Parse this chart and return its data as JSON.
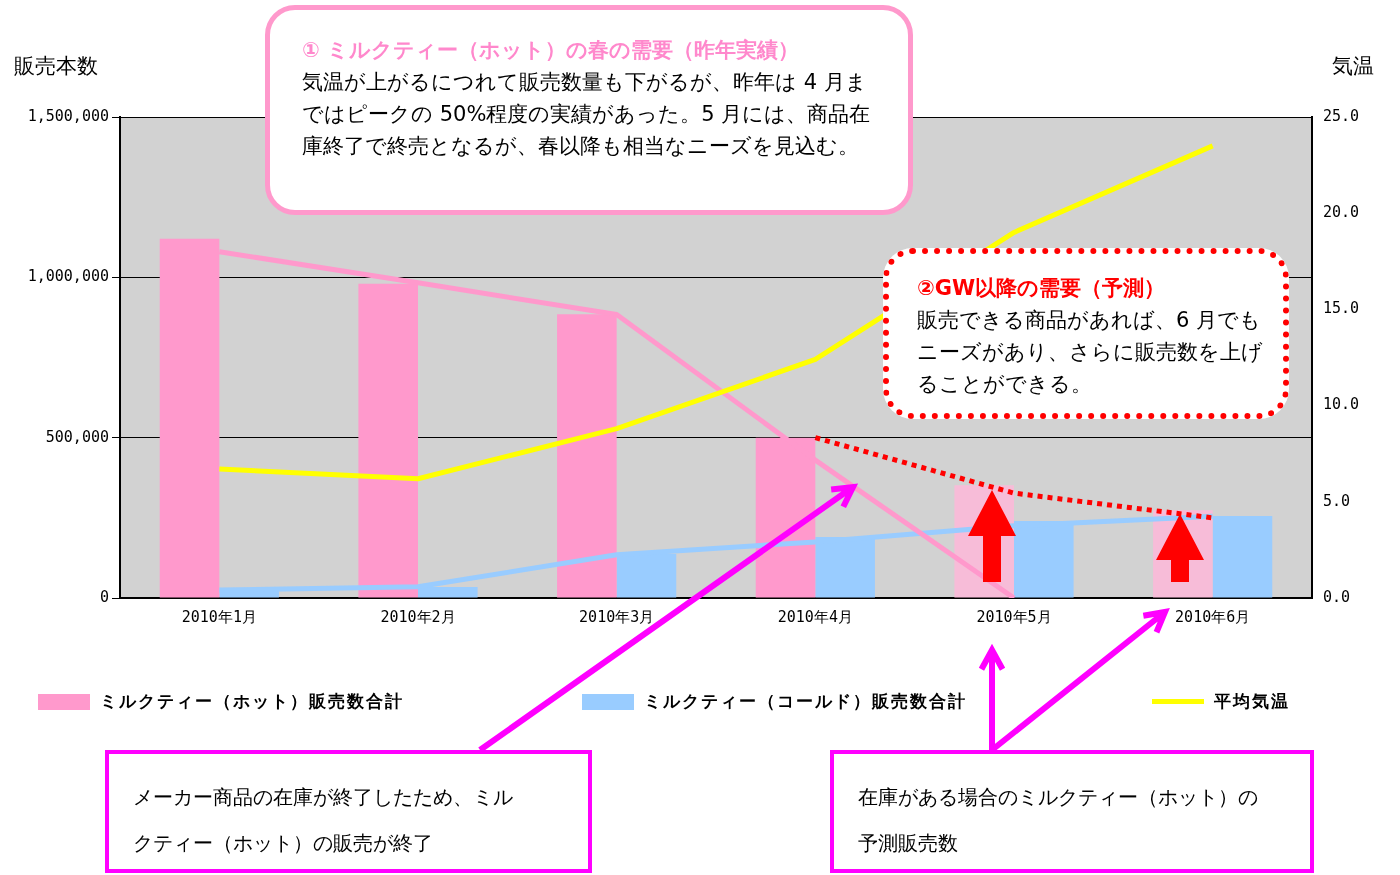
{
  "chart_data": {
    "type": "bar",
    "ylabel": "販売本数",
    "y2label": "気温",
    "categories": [
      "2010年1月",
      "2010年2月",
      "2010年3月",
      "2010年4月",
      "2010年5月",
      "2010年6月"
    ],
    "series": [
      {
        "name": "ミルクティー（ホット）販売数合計",
        "color": "#ff99cc",
        "colors": [
          "#ff99cc",
          "#ff99cc",
          "#ff99cc",
          "#ff99cc",
          "#f7bcd8",
          "#f7bcd8"
        ],
        "values": [
          1120000,
          980000,
          885000,
          500000,
          352000,
          274000
        ]
      },
      {
        "name": "ミルクティー（コールド）販売数合計",
        "color": "#99ccff",
        "values": [
          25000,
          34000,
          137000,
          190000,
          240000,
          256000
        ]
      },
      {
        "name": "平均気温",
        "type": "line",
        "axis": "y2",
        "color": "#ffff00",
        "values": [
          6.7,
          6.2,
          8.8,
          12.4,
          19.0,
          23.5
        ]
      },
      {
        "type": "line",
        "color": "#ff99cc",
        "values": [
          1080000,
          983000,
          884000,
          430000,
          0,
          null
        ]
      },
      {
        "type": "line",
        "color": "#99ccff",
        "values": [
          25000,
          35000,
          135000,
          175000,
          225000,
          255000
        ]
      },
      {
        "type": "line",
        "color": "#ff0000",
        "line_style": "dotted",
        "values": [
          null,
          null,
          null,
          500000,
          327000,
          250000
        ]
      }
    ],
    "ylim": [
      0,
      1500000
    ],
    "yticks": [
      {
        "value": 0,
        "label": "0"
      },
      {
        "value": 500000,
        "label": "500,000"
      },
      {
        "value": 1000000,
        "label": "1,000,000"
      },
      {
        "value": 1500000,
        "label": "1,500,000"
      }
    ],
    "y2lim": [
      0,
      25
    ],
    "y2ticks": [
      {
        "value": 0,
        "label": "0.0"
      },
      {
        "value": 5,
        "label": "5.0"
      },
      {
        "value": 10,
        "label": "10.0"
      },
      {
        "value": 15,
        "label": "15.0"
      },
      {
        "value": 20,
        "label": "20.0"
      },
      {
        "value": 25,
        "label": "25.0"
      }
    ],
    "grid": "y",
    "legend": "bottom",
    "marker": "none",
    "annotations": [
      "①  ミルクティー（ホット）の春の需要（昨年実績）",
      "気温が上がるにつれて販売数量も下がるが、昨年は 4 月まではピークの 50%程度の実績があった。5  月には、商品在庫終了で終売となるが、春以降も相当なニーズを見込む。",
      "②GW以降の需要（予測）",
      "販売できる商品があれば、6 月でもニーズがあり、さらに販売数を上げることができる。",
      "メーカー商品の在庫が終了したため、ミルクティー（ホット）の販売が終了",
      "在庫がある場合のミルクティー（ホット）の予測販売数"
    ]
  }
}
